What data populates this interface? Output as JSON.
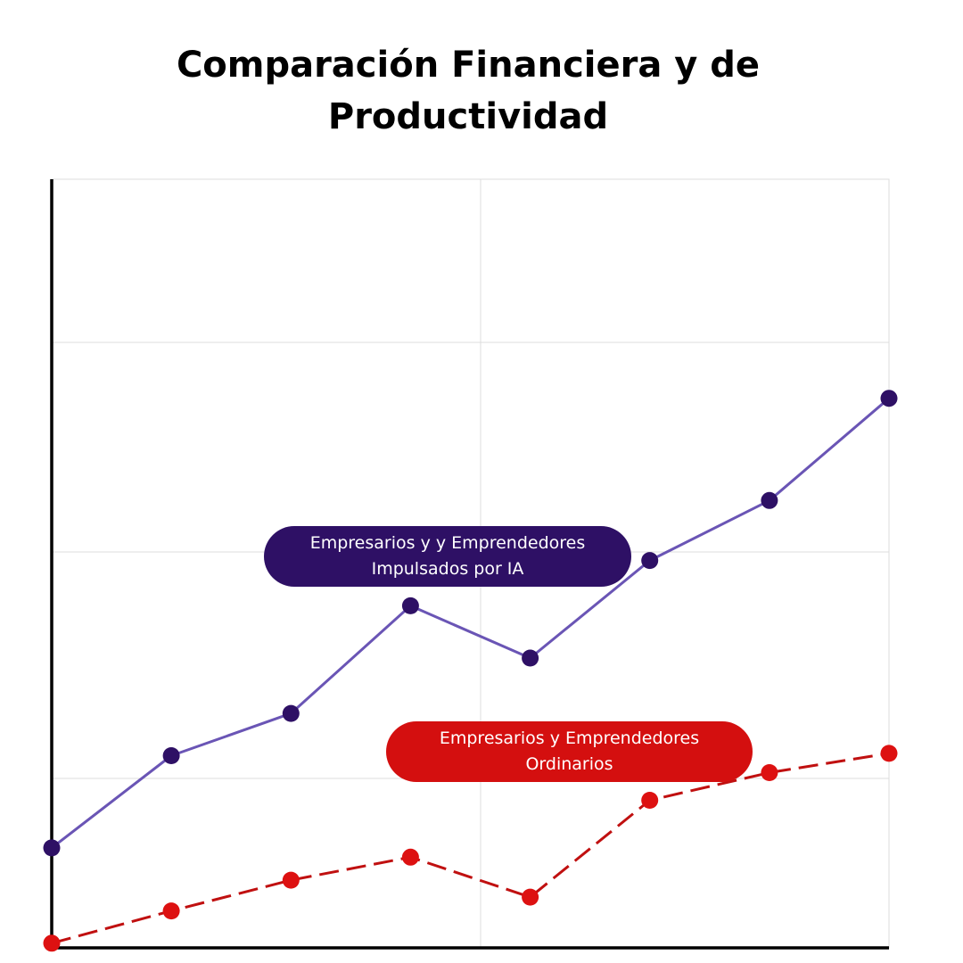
{
  "chart_data": {
    "type": "line",
    "title": [
      "Comparación Financiera y de",
      "Productividad"
    ],
    "xlabel": "",
    "ylabel": "",
    "x": [
      1,
      2,
      3,
      4,
      5,
      6,
      7,
      8
    ],
    "xlim": [
      1,
      8
    ],
    "ylim": [
      0,
      100
    ],
    "grid": true,
    "series": [
      {
        "name": [
          "Empresarios y y Emprendedores",
          "Impulsados por IA"
        ],
        "color": "#6a55b5",
        "marker_color": "#2e1065",
        "label_bg": "#2e1065",
        "line_style": "solid",
        "values": [
          13,
          25,
          30.5,
          44.5,
          37.7,
          50.4,
          58.2,
          71.5
        ]
      },
      {
        "name": [
          "Empresarios y Emprendedores",
          "Ordinarios"
        ],
        "color": "#c01010",
        "marker_color": "#dd1111",
        "label_bg": "#d40f0f",
        "line_style": "dashed",
        "values": [
          0.6,
          4.8,
          8.8,
          11.8,
          6.6,
          19.2,
          22.8,
          25.3
        ]
      }
    ]
  }
}
